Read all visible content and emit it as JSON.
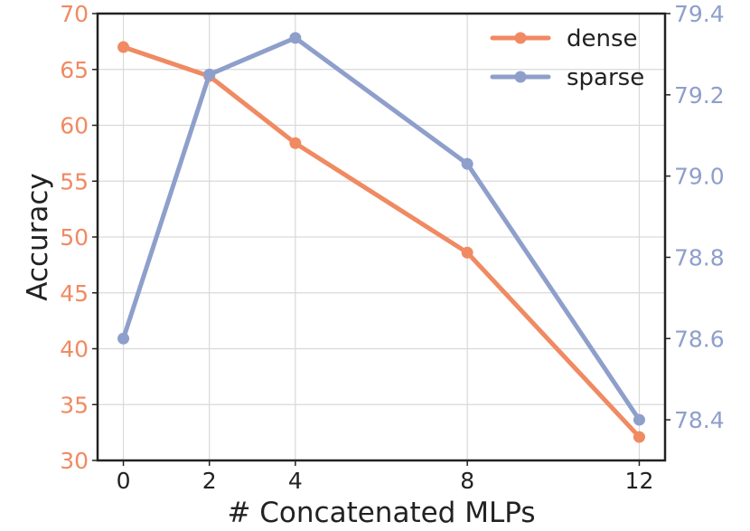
{
  "chart_data": {
    "type": "line",
    "title": "",
    "xlabel": "# Concatenated MLPs",
    "ylabel": "Accuracy",
    "x": [
      0,
      2,
      4,
      8,
      12
    ],
    "xticks": [
      0,
      2,
      4,
      8,
      12
    ],
    "xticklabels": [
      "0",
      "2",
      "4",
      "8",
      "12"
    ],
    "xlim": [
      -0.6,
      12.6
    ],
    "grid": true,
    "legend_position": "top-right",
    "series": [
      {
        "name": "dense",
        "axis": "left",
        "color": "#f08a62",
        "values": [
          67.0,
          64.4,
          58.4,
          48.6,
          32.1
        ]
      },
      {
        "name": "sparse",
        "axis": "right",
        "color": "#8e9fcb",
        "values": [
          78.6,
          79.25,
          79.34,
          79.03,
          78.4
        ]
      }
    ],
    "y_left": {
      "range": [
        30,
        70
      ],
      "ticks": [
        30,
        35,
        40,
        45,
        50,
        55,
        60,
        65,
        70
      ],
      "ticklabels": [
        "30",
        "35",
        "40",
        "45",
        "50",
        "55",
        "60",
        "65",
        "70"
      ],
      "color": "#f08a62"
    },
    "y_right": {
      "range": [
        78.3,
        79.4
      ],
      "ticks": [
        78.4,
        78.6,
        78.8,
        79.0,
        79.2,
        79.4
      ],
      "ticklabels": [
        "78.4",
        "78.6",
        "78.8",
        "79.0",
        "79.2",
        "79.4"
      ],
      "color": "#8e9fcb"
    }
  }
}
